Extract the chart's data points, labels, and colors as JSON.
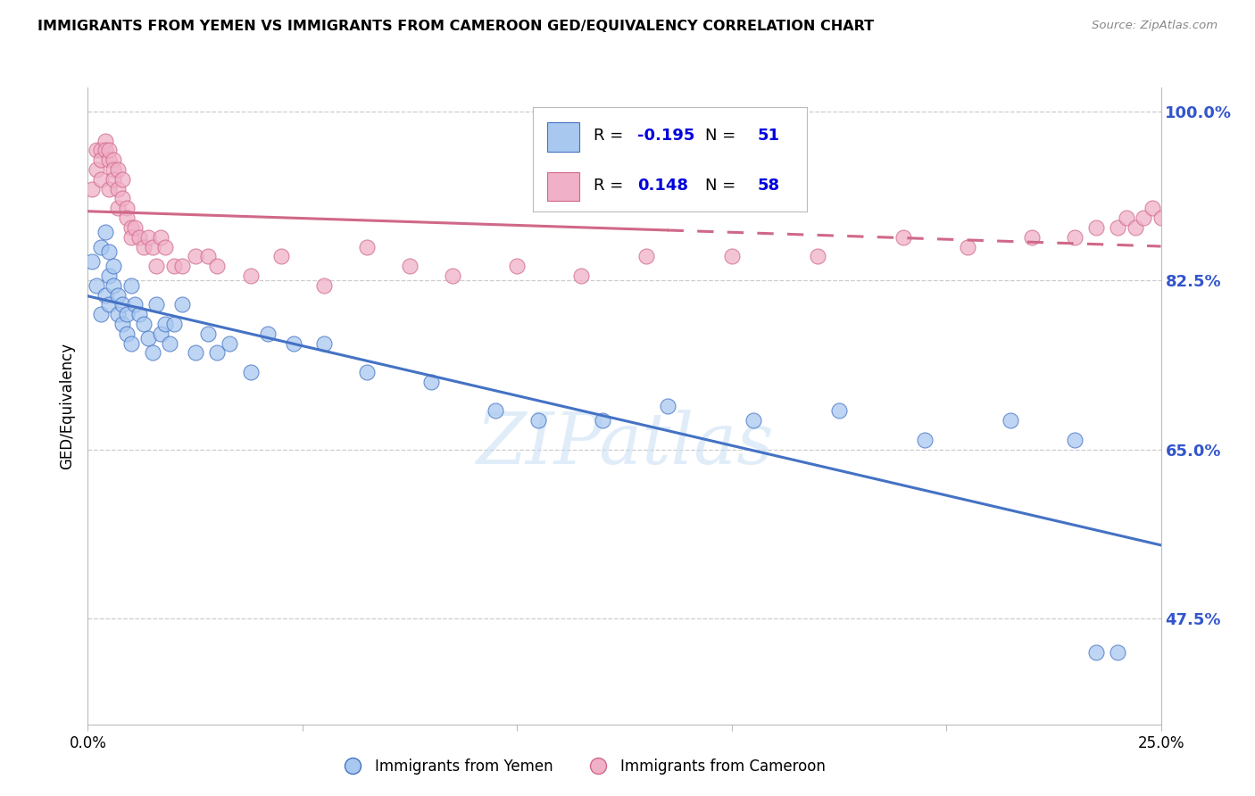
{
  "title": "IMMIGRANTS FROM YEMEN VS IMMIGRANTS FROM CAMEROON GED/EQUIVALENCY CORRELATION CHART",
  "source": "Source: ZipAtlas.com",
  "ylabel": "GED/Equivalency",
  "x_min": 0.0,
  "x_max": 0.25,
  "y_min": 0.365,
  "y_max": 1.025,
  "x_ticks": [
    0.0,
    0.05,
    0.1,
    0.15,
    0.2,
    0.25
  ],
  "x_tick_labels": [
    "0.0%",
    "",
    "",
    "",
    "",
    "25.0%"
  ],
  "y_ticks_right": [
    1.0,
    0.825,
    0.65,
    0.475
  ],
  "y_tick_labels_right": [
    "100.0%",
    "82.5%",
    "65.0%",
    "47.5%"
  ],
  "color_yemen": "#a8c8f0",
  "color_cameroon": "#f0b0c8",
  "color_line_yemen": "#4472c4",
  "color_line_cameroon": "#d06888",
  "color_highlight": "#0000dd",
  "background_color": "#ffffff",
  "grid_color": "#cccccc",
  "yemen_x": [
    0.001,
    0.002,
    0.003,
    0.003,
    0.004,
    0.004,
    0.005,
    0.005,
    0.005,
    0.006,
    0.006,
    0.007,
    0.007,
    0.008,
    0.008,
    0.009,
    0.009,
    0.01,
    0.01,
    0.011,
    0.012,
    0.013,
    0.014,
    0.015,
    0.016,
    0.017,
    0.018,
    0.019,
    0.02,
    0.022,
    0.025,
    0.028,
    0.03,
    0.033,
    0.038,
    0.042,
    0.048,
    0.055,
    0.065,
    0.08,
    0.095,
    0.105,
    0.12,
    0.135,
    0.155,
    0.175,
    0.195,
    0.215,
    0.23,
    0.235,
    0.24
  ],
  "yemen_y": [
    0.845,
    0.82,
    0.86,
    0.79,
    0.875,
    0.81,
    0.855,
    0.8,
    0.83,
    0.84,
    0.82,
    0.81,
    0.79,
    0.78,
    0.8,
    0.77,
    0.79,
    0.76,
    0.82,
    0.8,
    0.79,
    0.78,
    0.765,
    0.75,
    0.8,
    0.77,
    0.78,
    0.76,
    0.78,
    0.8,
    0.75,
    0.77,
    0.75,
    0.76,
    0.73,
    0.77,
    0.76,
    0.76,
    0.73,
    0.72,
    0.69,
    0.68,
    0.68,
    0.695,
    0.68,
    0.69,
    0.66,
    0.68,
    0.66,
    0.44,
    0.44
  ],
  "cameroon_x": [
    0.001,
    0.002,
    0.002,
    0.003,
    0.003,
    0.003,
    0.004,
    0.004,
    0.005,
    0.005,
    0.005,
    0.006,
    0.006,
    0.006,
    0.007,
    0.007,
    0.007,
    0.008,
    0.008,
    0.009,
    0.009,
    0.01,
    0.01,
    0.011,
    0.012,
    0.013,
    0.014,
    0.015,
    0.016,
    0.017,
    0.018,
    0.02,
    0.022,
    0.025,
    0.028,
    0.03,
    0.038,
    0.045,
    0.055,
    0.065,
    0.075,
    0.085,
    0.1,
    0.115,
    0.13,
    0.15,
    0.17,
    0.19,
    0.205,
    0.22,
    0.23,
    0.235,
    0.24,
    0.242,
    0.244,
    0.246,
    0.248,
    0.25
  ],
  "cameroon_y": [
    0.92,
    0.96,
    0.94,
    0.96,
    0.95,
    0.93,
    0.97,
    0.96,
    0.95,
    0.96,
    0.92,
    0.95,
    0.94,
    0.93,
    0.92,
    0.94,
    0.9,
    0.93,
    0.91,
    0.9,
    0.89,
    0.88,
    0.87,
    0.88,
    0.87,
    0.86,
    0.87,
    0.86,
    0.84,
    0.87,
    0.86,
    0.84,
    0.84,
    0.85,
    0.85,
    0.84,
    0.83,
    0.85,
    0.82,
    0.86,
    0.84,
    0.83,
    0.84,
    0.83,
    0.85,
    0.85,
    0.85,
    0.87,
    0.86,
    0.87,
    0.87,
    0.88,
    0.88,
    0.89,
    0.88,
    0.89,
    0.9,
    0.89
  ],
  "trend_yemen_x0": 0.0,
  "trend_yemen_x1": 0.25,
  "trend_cameroon_x0": 0.0,
  "trend_cameroon_solid_x1": 0.135,
  "trend_cameroon_dash_x1": 0.25,
  "watermark": "ZIPatlas"
}
